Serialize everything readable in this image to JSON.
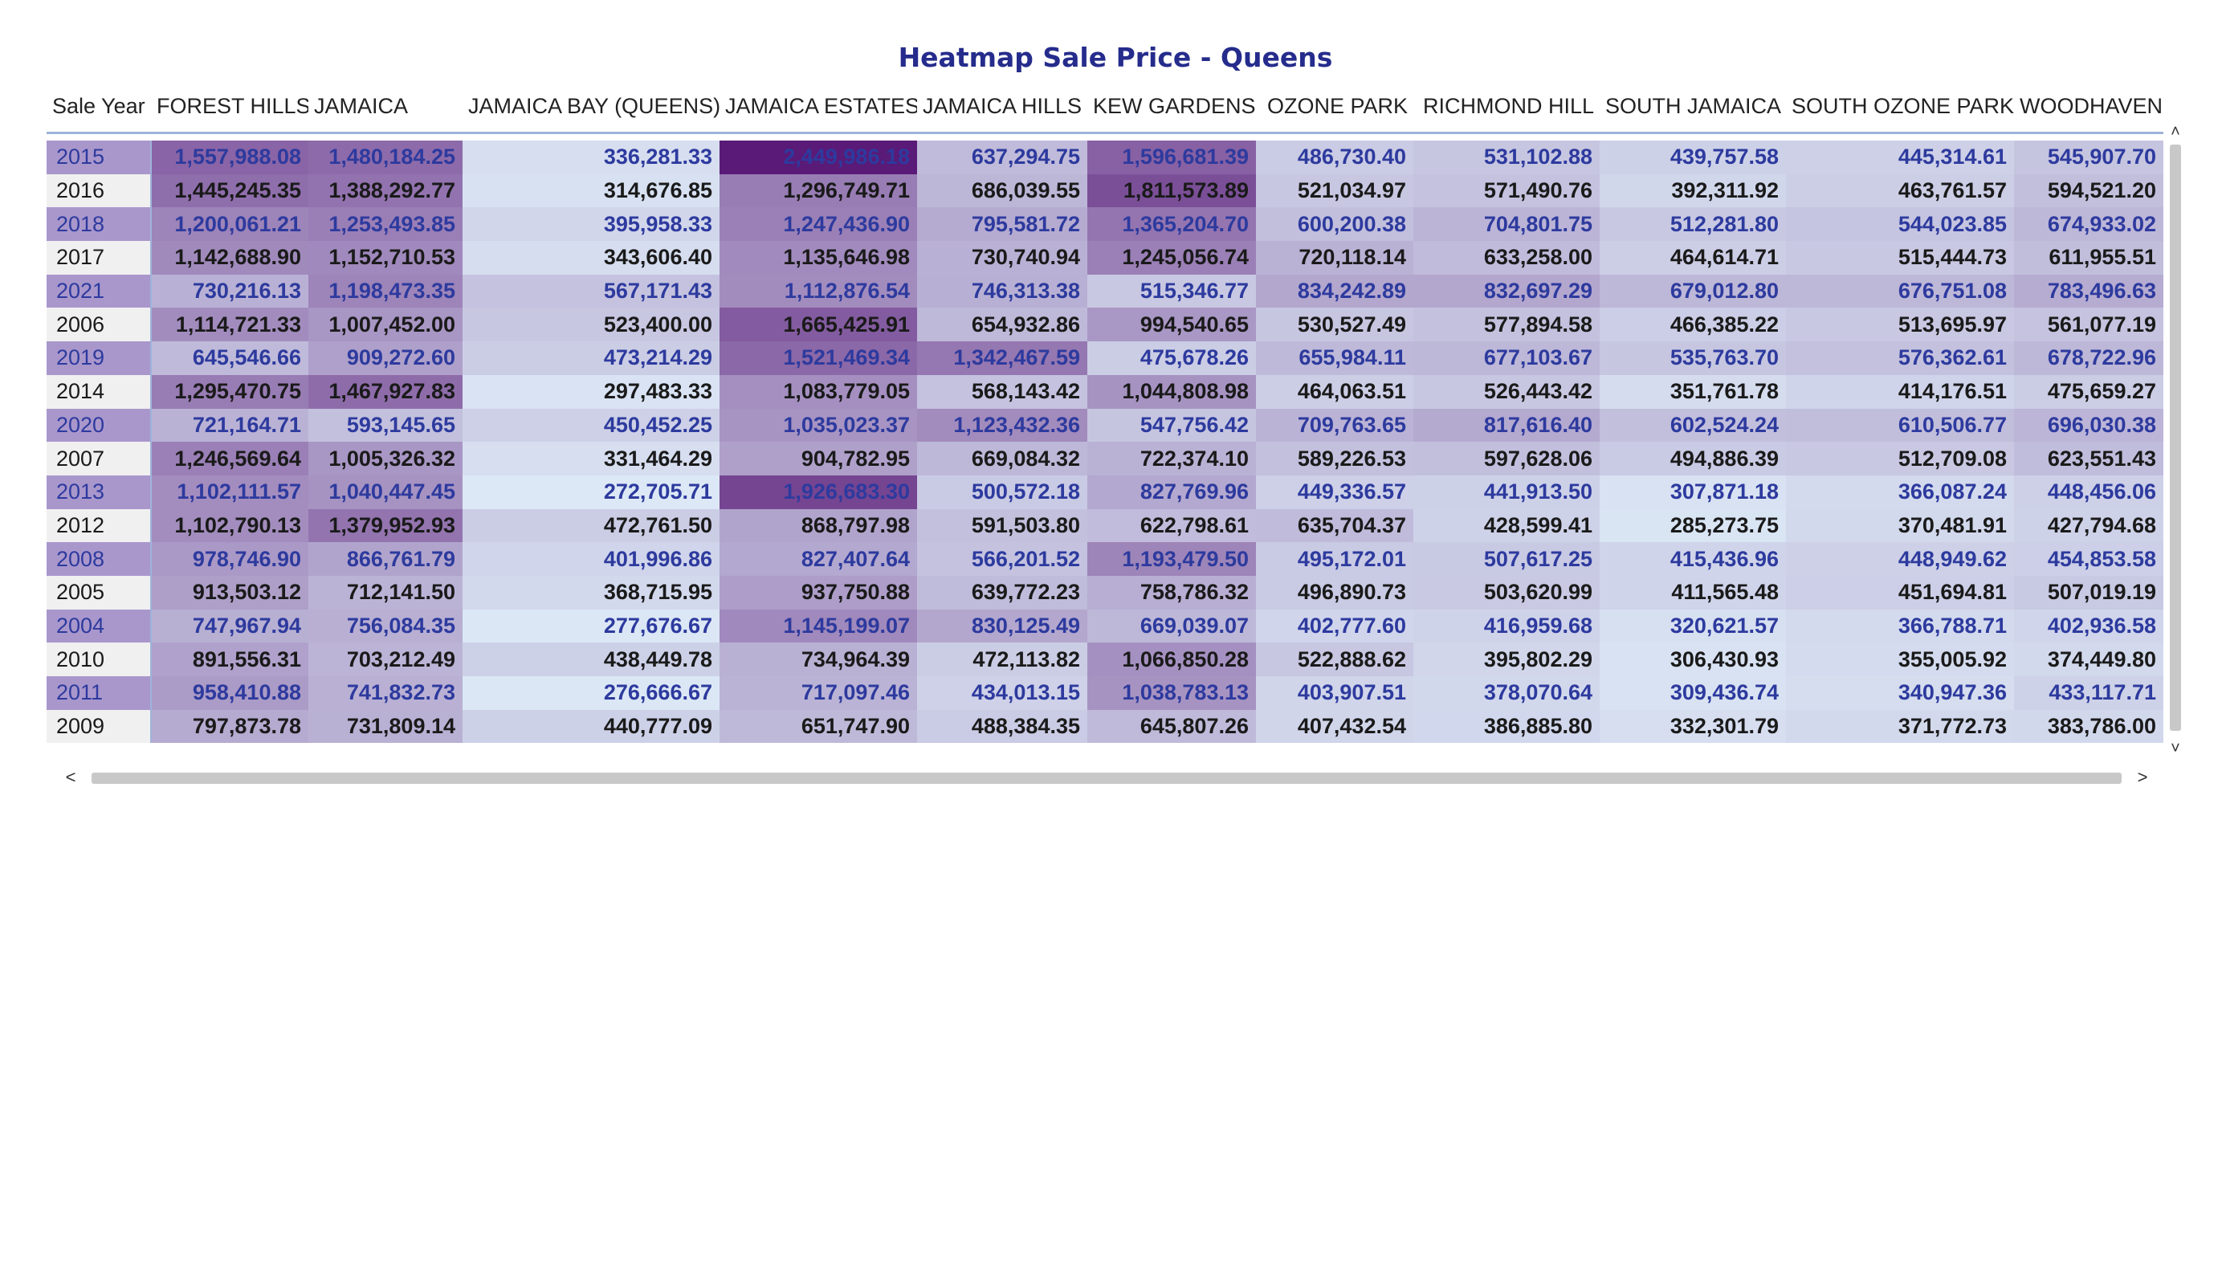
{
  "colors": {
    "title": "#252c8c",
    "value_dark": "#1a1a1a",
    "value_blue": "#2d3a9e",
    "year_highlight_bg": "#a997cc",
    "year_plain_bg": "#f0f0f0",
    "scale_low": "#dce8f6",
    "scale_high": "#5a1a78"
  },
  "icons": {
    "scroll_up": "chevron-up-icon",
    "scroll_down": "chevron-down-icon",
    "scroll_left": "chevron-left-icon",
    "scroll_right": "chevron-right-icon"
  },
  "chart_data": {
    "type": "heatmap",
    "title": "Heatmap Sale Price - Queens",
    "row_header": "Sale Year",
    "columns": [
      "FOREST HILLS",
      "JAMAICA",
      "JAMAICA BAY (QUEENS)",
      "JAMAICA ESTATES",
      "JAMAICA HILLS",
      "KEW GARDENS",
      "OZONE PARK",
      "RICHMOND HILL",
      "SOUTH JAMAICA",
      "SOUTH OZONE PARK",
      "WOODHAVEN"
    ],
    "color_scale": {
      "min": 272705.71,
      "max": 2449986.18
    },
    "rows": [
      {
        "year": "2015",
        "values": [
          "1,557,988.08",
          "1,480,184.25",
          "336,281.33",
          "2,449,986.18",
          "637,294.75",
          "1,596,681.39",
          "486,730.40",
          "531,102.88",
          "439,757.58",
          "445,314.61",
          "545,907.70"
        ]
      },
      {
        "year": "2016",
        "values": [
          "1,445,245.35",
          "1,388,292.77",
          "314,676.85",
          "1,296,749.71",
          "686,039.55",
          "1,811,573.89",
          "521,034.97",
          "571,490.76",
          "392,311.92",
          "463,761.57",
          "594,521.20"
        ]
      },
      {
        "year": "2018",
        "values": [
          "1,200,061.21",
          "1,253,493.85",
          "395,958.33",
          "1,247,436.90",
          "795,581.72",
          "1,365,204.70",
          "600,200.38",
          "704,801.75",
          "512,281.80",
          "544,023.85",
          "674,933.02"
        ]
      },
      {
        "year": "2017",
        "values": [
          "1,142,688.90",
          "1,152,710.53",
          "343,606.40",
          "1,135,646.98",
          "730,740.94",
          "1,245,056.74",
          "720,118.14",
          "633,258.00",
          "464,614.71",
          "515,444.73",
          "611,955.51"
        ]
      },
      {
        "year": "2021",
        "values": [
          "730,216.13",
          "1,198,473.35",
          "567,171.43",
          "1,112,876.54",
          "746,313.38",
          "515,346.77",
          "834,242.89",
          "832,697.29",
          "679,012.80",
          "676,751.08",
          "783,496.63"
        ]
      },
      {
        "year": "2006",
        "values": [
          "1,114,721.33",
          "1,007,452.00",
          "523,400.00",
          "1,665,425.91",
          "654,932.86",
          "994,540.65",
          "530,527.49",
          "577,894.58",
          "466,385.22",
          "513,695.97",
          "561,077.19"
        ]
      },
      {
        "year": "2019",
        "values": [
          "645,546.66",
          "909,272.60",
          "473,214.29",
          "1,521,469.34",
          "1,342,467.59",
          "475,678.26",
          "655,984.11",
          "677,103.67",
          "535,763.70",
          "576,362.61",
          "678,722.96"
        ]
      },
      {
        "year": "2014",
        "values": [
          "1,295,470.75",
          "1,467,927.83",
          "297,483.33",
          "1,083,779.05",
          "568,143.42",
          "1,044,808.98",
          "464,063.51",
          "526,443.42",
          "351,761.78",
          "414,176.51",
          "475,659.27"
        ]
      },
      {
        "year": "2020",
        "values": [
          "721,164.71",
          "593,145.65",
          "450,452.25",
          "1,035,023.37",
          "1,123,432.36",
          "547,756.42",
          "709,763.65",
          "817,616.40",
          "602,524.24",
          "610,506.77",
          "696,030.38"
        ]
      },
      {
        "year": "2007",
        "values": [
          "1,246,569.64",
          "1,005,326.32",
          "331,464.29",
          "904,782.95",
          "669,084.32",
          "722,374.10",
          "589,226.53",
          "597,628.06",
          "494,886.39",
          "512,709.08",
          "623,551.43"
        ]
      },
      {
        "year": "2013",
        "values": [
          "1,102,111.57",
          "1,040,447.45",
          "272,705.71",
          "1,926,683.30",
          "500,572.18",
          "827,769.96",
          "449,336.57",
          "441,913.50",
          "307,871.18",
          "366,087.24",
          "448,456.06"
        ]
      },
      {
        "year": "2012",
        "values": [
          "1,102,790.13",
          "1,379,952.93",
          "472,761.50",
          "868,797.98",
          "591,503.80",
          "622,798.61",
          "635,704.37",
          "428,599.41",
          "285,273.75",
          "370,481.91",
          "427,794.68"
        ]
      },
      {
        "year": "2008",
        "values": [
          "978,746.90",
          "866,761.79",
          "401,996.86",
          "827,407.64",
          "566,201.52",
          "1,193,479.50",
          "495,172.01",
          "507,617.25",
          "415,436.96",
          "448,949.62",
          "454,853.58"
        ]
      },
      {
        "year": "2005",
        "values": [
          "913,503.12",
          "712,141.50",
          "368,715.95",
          "937,750.88",
          "639,772.23",
          "758,786.32",
          "496,890.73",
          "503,620.99",
          "411,565.48",
          "451,694.81",
          "507,019.19"
        ]
      },
      {
        "year": "2004",
        "values": [
          "747,967.94",
          "756,084.35",
          "277,676.67",
          "1,145,199.07",
          "830,125.49",
          "669,039.07",
          "402,777.60",
          "416,959.68",
          "320,621.57",
          "366,788.71",
          "402,936.58"
        ]
      },
      {
        "year": "2010",
        "values": [
          "891,556.31",
          "703,212.49",
          "438,449.78",
          "734,964.39",
          "472,113.82",
          "1,066,850.28",
          "522,888.62",
          "395,802.29",
          "306,430.93",
          "355,005.92",
          "374,449.80"
        ]
      },
      {
        "year": "2011",
        "values": [
          "958,410.88",
          "741,832.73",
          "276,666.67",
          "717,097.46",
          "434,013.15",
          "1,038,783.13",
          "403,907.51",
          "378,070.64",
          "309,436.74",
          "340,947.36",
          "433,117.71"
        ]
      },
      {
        "year": "2009",
        "values": [
          "797,873.78",
          "731,809.14",
          "440,777.09",
          "651,747.90",
          "488,384.35",
          "645,807.26",
          "407,432.54",
          "386,885.80",
          "332,301.79",
          "371,772.73",
          "383,786.00"
        ]
      }
    ]
  }
}
